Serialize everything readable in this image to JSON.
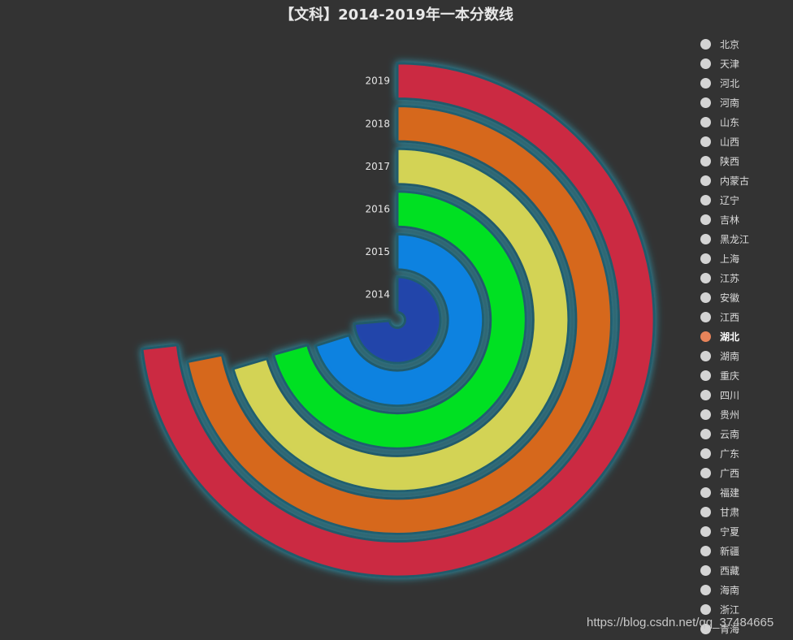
{
  "chart_data": {
    "type": "polar-bar",
    "title": "【文科】2014-2019年一本分数线",
    "categories": [
      "2014",
      "2015",
      "2016",
      "2017",
      "2018",
      "2019"
    ],
    "max": 750,
    "selected_series": "湖北",
    "series": [
      {
        "name": "湖北",
        "values": [
          552,
          526,
          530,
          528,
          539,
          549
        ]
      }
    ],
    "colors": [
      "#2244aa",
      "#0882e0",
      "#05e022",
      "#d3d355",
      "#d6671f",
      "#cb2c43"
    ],
    "legend": {
      "position": "right",
      "items": [
        "北京",
        "天津",
        "河北",
        "河南",
        "山东",
        "山西",
        "陕西",
        "内蒙古",
        "辽宁",
        "吉林",
        "黑龙江",
        "上海",
        "江苏",
        "安徽",
        "江西",
        "湖北",
        "湖南",
        "重庆",
        "四川",
        "贵州",
        "云南",
        "广东",
        "广西",
        "福建",
        "甘肃",
        "宁夏",
        "新疆",
        "西藏",
        "海南",
        "浙江",
        "青海"
      ],
      "inactive_color": "#d4d4d4",
      "active_color": "#e8845a"
    }
  },
  "watermark": "https://blog.csdn.net/qq_37484665"
}
